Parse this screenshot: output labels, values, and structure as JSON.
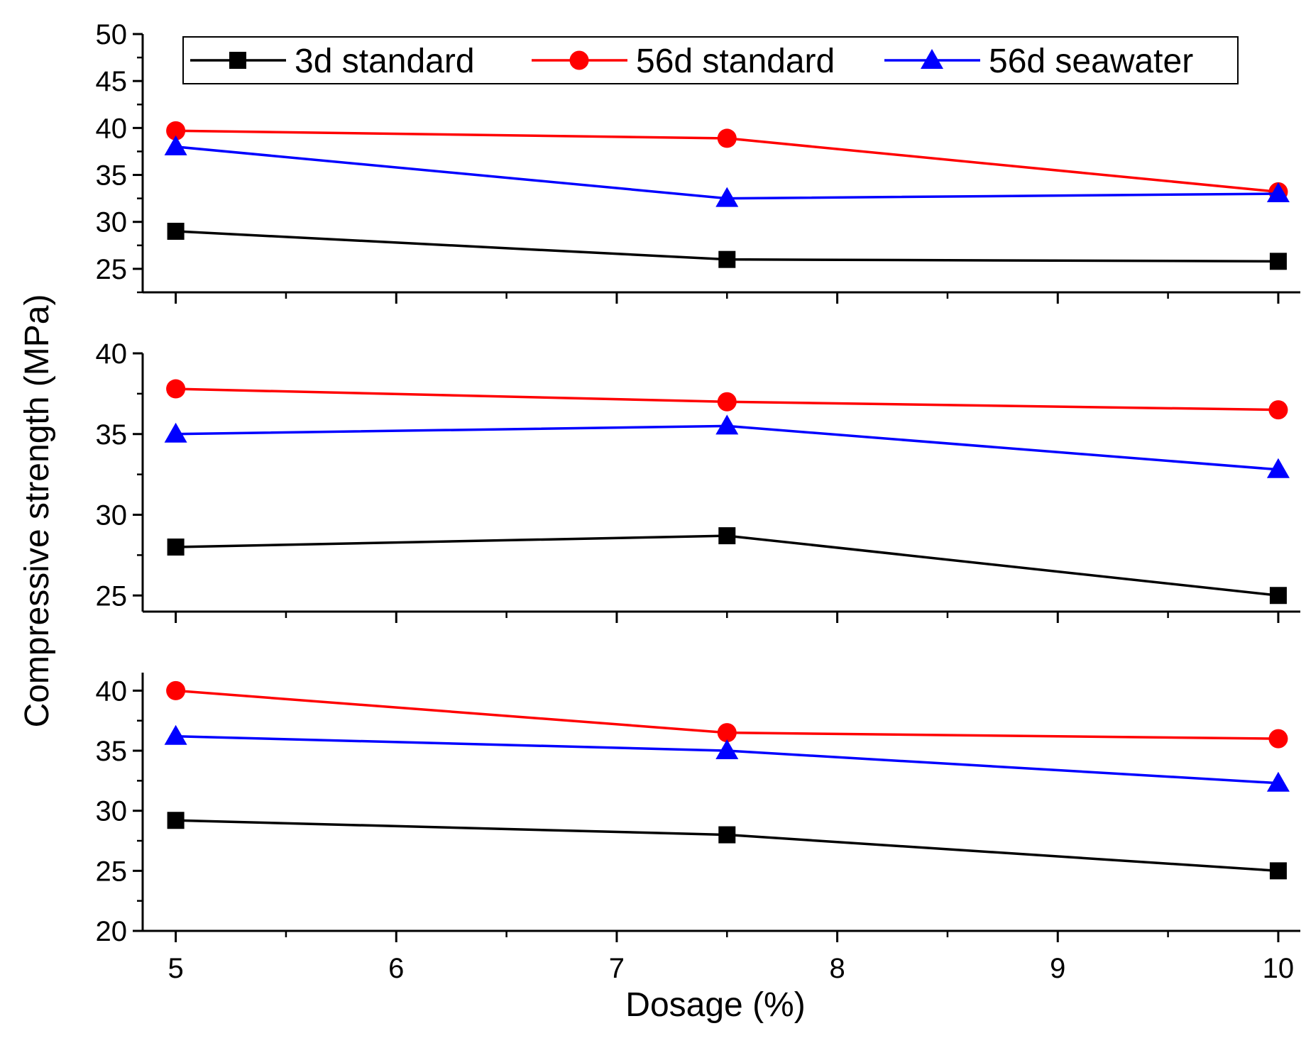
{
  "chart_data": {
    "type": "line",
    "ylabel": "Compressive strength (MPa)",
    "xlabel": "Dosage (%)",
    "xlim": [
      4.85,
      10.1
    ],
    "x_ticks": [
      5,
      6,
      7,
      8,
      9,
      10
    ],
    "x_tick_labels": [
      "5",
      "6",
      "7",
      "8",
      "9",
      "10"
    ],
    "x": [
      5,
      7.5,
      10
    ],
    "legend": {
      "placement": "top",
      "entries": [
        "3d standard",
        "56d standard",
        "56d seawater"
      ]
    },
    "series_style": [
      {
        "name": "3d standard",
        "color": "#000000",
        "marker": "square"
      },
      {
        "name": "56d standard",
        "color": "#ff0000",
        "marker": "circle"
      },
      {
        "name": "56d seawater",
        "color": "#0000ff",
        "marker": "triangle"
      }
    ],
    "panels": [
      {
        "ylim": [
          22.5,
          50
        ],
        "y_ticks": [
          25,
          30,
          35,
          40,
          45,
          50
        ],
        "y_tick_labels": [
          "25",
          "30",
          "35",
          "40",
          "45",
          "50"
        ],
        "series": [
          {
            "name": "3d standard",
            "values": [
              29.0,
              26.0,
              25.8
            ]
          },
          {
            "name": "56d standard",
            "values": [
              39.7,
              38.9,
              33.2
            ]
          },
          {
            "name": "56d seawater",
            "values": [
              38.0,
              32.5,
              33.0
            ]
          }
        ]
      },
      {
        "ylim": [
          24,
          40
        ],
        "y_ticks": [
          25,
          30,
          35,
          40
        ],
        "y_tick_labels": [
          "25",
          "30",
          "35",
          "40"
        ],
        "series": [
          {
            "name": "3d standard",
            "values": [
              28.0,
              28.7,
              25.0
            ]
          },
          {
            "name": "56d standard",
            "values": [
              37.8,
              37.0,
              36.5
            ]
          },
          {
            "name": "56d seawater",
            "values": [
              35.0,
              35.5,
              32.8
            ]
          }
        ]
      },
      {
        "ylim": [
          20,
          41.5
        ],
        "y_ticks": [
          20,
          25,
          30,
          35,
          40
        ],
        "y_tick_labels": [
          "20",
          "25",
          "30",
          "35",
          "40"
        ],
        "series": [
          {
            "name": "3d standard",
            "values": [
              29.2,
              28.0,
              25.0
            ]
          },
          {
            "name": "56d standard",
            "values": [
              40.0,
              36.5,
              36.0
            ]
          },
          {
            "name": "56d seawater",
            "values": [
              36.2,
              35.0,
              32.3
            ]
          }
        ]
      }
    ]
  }
}
